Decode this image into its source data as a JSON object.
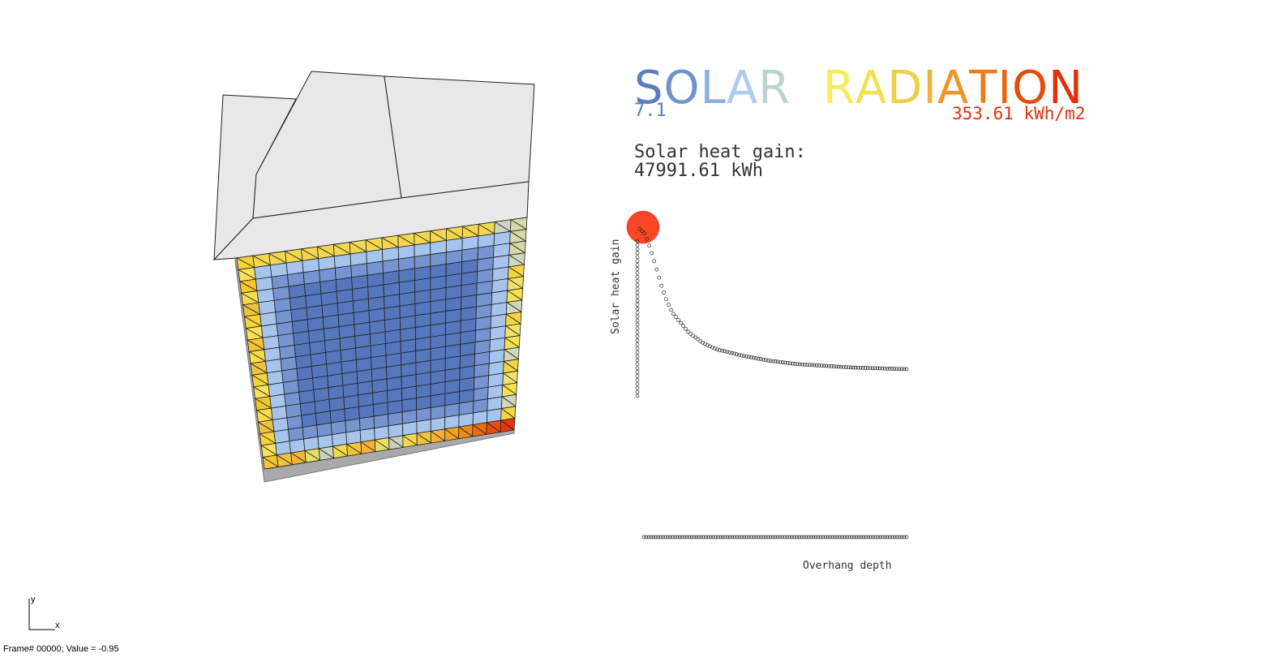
{
  "title": {
    "word1": [
      "S",
      "O",
      "L",
      "A",
      "R"
    ],
    "word2": [
      "R",
      "A",
      "D",
      "I",
      "A",
      "T",
      "I",
      "O",
      "N"
    ],
    "word1_colors": [
      "#5a7cc0",
      "#7092cc",
      "#8eaee0",
      "#aecbf0",
      "#bcd4cf"
    ],
    "word2_colors": [
      "#f6ec55",
      "#f2e050",
      "#efcf47",
      "#efb338",
      "#ef9627",
      "#ec7c18",
      "#ea640f",
      "#e84a0a",
      "#e3300a"
    ]
  },
  "legend": {
    "min": "7.1",
    "max": "353.61 kWh/m2",
    "min_color": "#5a7cc0",
    "max_color": "#e3300a"
  },
  "heat_gain": {
    "label": "Solar heat gain:",
    "value": "47991.61 kWh"
  },
  "graph": {
    "ylabel": "Solar heat gain",
    "xlabel": "Overhang depth",
    "marker_color": "#fb4525"
  },
  "chart_data": {
    "type": "scatter",
    "xlabel": "Overhang depth",
    "ylabel": "Solar heat gain",
    "series": [
      {
        "values": [
          [
            0.02,
            1.0
          ],
          [
            0.04,
            0.97
          ],
          [
            0.06,
            0.88
          ],
          [
            0.08,
            0.77
          ],
          [
            0.1,
            0.66
          ],
          [
            0.12,
            0.57
          ],
          [
            0.14,
            0.5
          ],
          [
            0.17,
            0.44
          ],
          [
            0.2,
            0.38
          ],
          [
            0.25,
            0.32
          ],
          [
            0.3,
            0.28
          ],
          [
            0.4,
            0.24
          ],
          [
            0.5,
            0.21
          ],
          [
            0.6,
            0.19
          ],
          [
            0.7,
            0.18
          ],
          [
            0.8,
            0.17
          ],
          [
            0.9,
            0.165
          ],
          [
            1.0,
            0.16
          ]
        ]
      }
    ]
  },
  "status": {
    "text": "Frame# 00000;  Value = -0.95"
  },
  "axes_widget": {
    "y": "y",
    "x": "x"
  }
}
